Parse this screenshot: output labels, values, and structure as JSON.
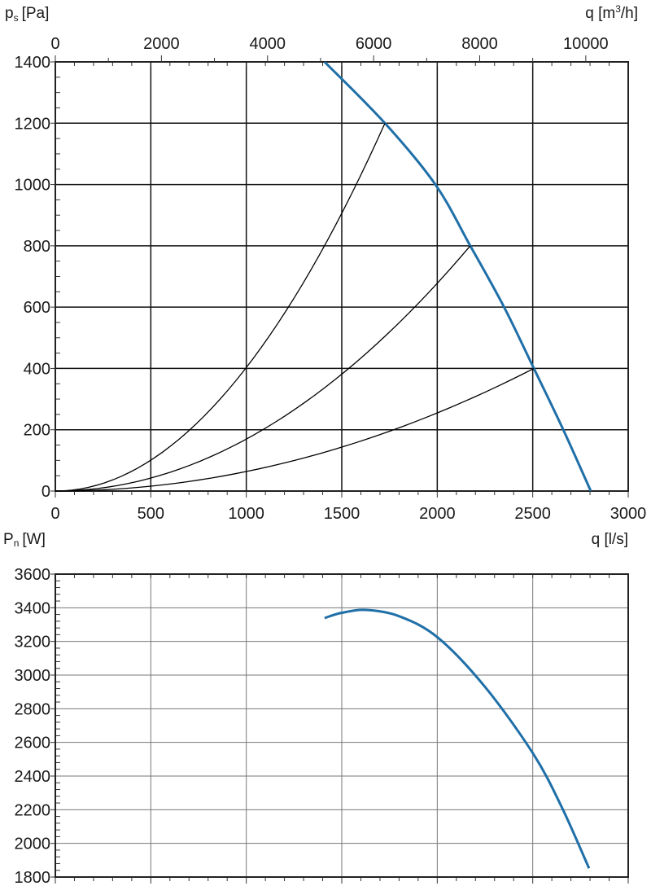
{
  "chart_data": [
    {
      "type": "line",
      "ylabel": "p",
      "ylabel_sub": "s",
      "ylabel_unit": "[Pa]",
      "x2label": "q [m",
      "x2label_sup": "3",
      "x2label_unit": "/h]",
      "xlabel": "q [l/s]",
      "xlim": [
        0,
        3000
      ],
      "ylim": [
        0,
        1400
      ],
      "x_ticks": [
        "0",
        "500",
        "1000",
        "1500",
        "2000",
        "2500",
        "3000"
      ],
      "y_ticks": [
        "0",
        "200",
        "400",
        "600",
        "800",
        "1000",
        "1200",
        "1400"
      ],
      "x2_ticks": [
        "0",
        "2000",
        "4000",
        "6000",
        "8000",
        "10000"
      ],
      "grid": true,
      "series": [
        {
          "kind": "fan-curve",
          "color": "#1f6fa8",
          "x": [
            1410,
            1726,
            1990,
            2173,
            2350,
            2506,
            2660,
            2804
          ],
          "y": [
            1400,
            1200,
            1000,
            800,
            600,
            400,
            200,
            0
          ]
        },
        {
          "kind": "system-curve",
          "color": "#000000",
          "x": [
            0,
            1726
          ],
          "y": [
            0,
            1200
          ]
        },
        {
          "kind": "system-curve",
          "color": "#000000",
          "x": [
            0,
            2173
          ],
          "y": [
            0,
            800
          ]
        },
        {
          "kind": "system-curve",
          "color": "#000000",
          "x": [
            0,
            2506
          ],
          "y": [
            0,
            400
          ]
        }
      ]
    },
    {
      "type": "line",
      "ylabel": "P",
      "ylabel_sub": "n",
      "ylabel_unit": "[W]",
      "xlim": [
        0,
        3000
      ],
      "ylim": [
        1800,
        3600
      ],
      "y_ticks": [
        "1800",
        "2000",
        "2200",
        "2400",
        "2600",
        "2800",
        "3000",
        "3200",
        "3400",
        "3600"
      ],
      "grid": true,
      "series": [
        {
          "kind": "power-curve",
          "color": "#1f6fa8",
          "x": [
            1410,
            1500,
            1628,
            1800,
            2003,
            2250,
            2501,
            2650,
            2795
          ],
          "y": [
            3339,
            3370,
            3387,
            3350,
            3223,
            2930,
            2535,
            2220,
            1852
          ]
        }
      ]
    }
  ]
}
